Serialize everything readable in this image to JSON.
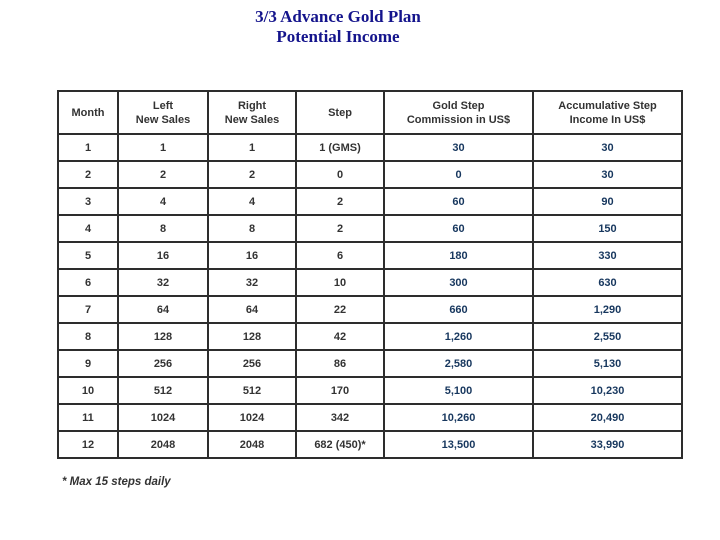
{
  "page": {
    "background_color": "#ffffff"
  },
  "title": {
    "line1": "3/3 Advance Gold Plan",
    "line2": "Potential Income",
    "color": "#14148C"
  },
  "table": {
    "border_color": "#2d2d2d",
    "header_text_color": "#333333",
    "body_text_color": "#333333",
    "money_text_color": "#17375E",
    "columns": [
      {
        "key": "month",
        "label": "Month",
        "is_currency": false
      },
      {
        "key": "left-new-sales",
        "label": "Left\nNew Sales",
        "is_currency": false
      },
      {
        "key": "right-new-sales",
        "label": "Right\nNew Sales",
        "is_currency": false
      },
      {
        "key": "step",
        "label": "Step",
        "is_currency": false
      },
      {
        "key": "gold-step-commission",
        "label": "Gold Step\nCommission in US$",
        "is_currency": true
      },
      {
        "key": "accumulative-step-income",
        "label": "Accumulative Step\nIncome In US$",
        "is_currency": true
      }
    ],
    "rows": [
      [
        "1",
        "1",
        "1",
        "1 (GMS)",
        "30",
        "30"
      ],
      [
        "2",
        "2",
        "2",
        "0",
        "0",
        "30"
      ],
      [
        "3",
        "4",
        "4",
        "2",
        "60",
        "90"
      ],
      [
        "4",
        "8",
        "8",
        "2",
        "60",
        "150"
      ],
      [
        "5",
        "16",
        "16",
        "6",
        "180",
        "330"
      ],
      [
        "6",
        "32",
        "32",
        "10",
        "300",
        "630"
      ],
      [
        "7",
        "64",
        "64",
        "22",
        "660",
        "1,290"
      ],
      [
        "8",
        "128",
        "128",
        "42",
        "1,260",
        "2,550"
      ],
      [
        "9",
        "256",
        "256",
        "86",
        "2,580",
        "5,130"
      ],
      [
        "10",
        "512",
        "512",
        "170",
        "5,100",
        "10,230"
      ],
      [
        "11",
        "1024",
        "1024",
        "342",
        "10,260",
        "20,490"
      ],
      [
        "12",
        "2048",
        "2048",
        "682 (450)*",
        "13,500",
        "33,990"
      ]
    ]
  },
  "footnote": {
    "text": "* Max 15 steps daily"
  }
}
